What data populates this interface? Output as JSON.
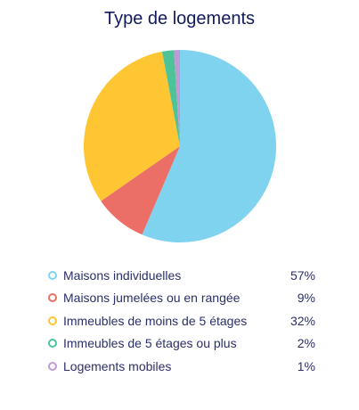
{
  "chart_data": {
    "type": "pie",
    "title": "Type de logements",
    "categories": [
      "Maisons individuelles",
      "Maisons jumelées ou en rangée",
      "Immeubles de moins de 5 étages",
      "Immeubles de 5 étages ou plus",
      "Logements mobiles"
    ],
    "values": [
      57,
      9,
      32,
      2,
      1
    ],
    "value_labels": [
      "57%",
      "9%",
      "32%",
      "2%",
      "1%"
    ],
    "colors": [
      "#7fd3ee",
      "#ec6f67",
      "#fdc632",
      "#4dc397",
      "#c09ad6"
    ],
    "legend_position": "bottom"
  }
}
